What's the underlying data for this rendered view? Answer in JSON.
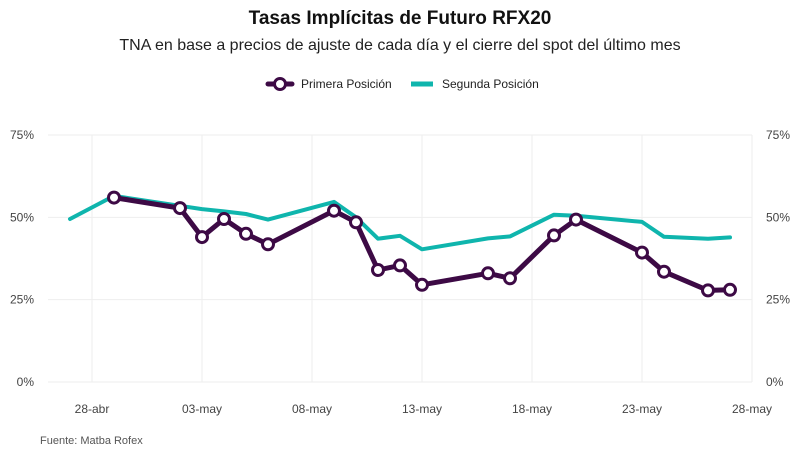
{
  "chart_data": {
    "type": "line",
    "title": "Tasas Implícitas de Futuro RFX20",
    "subtitle": "TNA en base a precios de ajuste de cada día y el cierre del spot del último mes",
    "caption": "Fuente: Matba Rofex",
    "ylim": [
      0,
      75
    ],
    "yticks": [
      0,
      25,
      50,
      75
    ],
    "ytick_labels": [
      "0%",
      "25%",
      "50%",
      "75%"
    ],
    "xlim": [
      "2021-04-26",
      "2021-05-28"
    ],
    "xticks": [
      "2021-04-28",
      "2021-05-03",
      "2021-05-08",
      "2021-05-13",
      "2021-05-18",
      "2021-05-23",
      "2021-05-28"
    ],
    "xtick_labels": [
      "28-abr",
      "03-may",
      "08-may",
      "13-may",
      "18-may",
      "23-may",
      "28-may"
    ],
    "grid": true,
    "legend_position": "top",
    "series": [
      {
        "name": "Primera Posición",
        "color": "#3d0a45",
        "marker": "circle",
        "points": [
          [
            "2021-04-29",
            56.0
          ],
          [
            "2021-05-02",
            52.8
          ],
          [
            "2021-05-03",
            44.0
          ],
          [
            "2021-05-04",
            49.5
          ],
          [
            "2021-05-05",
            45.0
          ],
          [
            "2021-05-06",
            41.8
          ],
          [
            "2021-05-09",
            52.0
          ],
          [
            "2021-05-10",
            48.5
          ],
          [
            "2021-05-11",
            34.0
          ],
          [
            "2021-05-12",
            35.4
          ],
          [
            "2021-05-13",
            29.5
          ],
          [
            "2021-05-16",
            33.0
          ],
          [
            "2021-05-17",
            31.5
          ],
          [
            "2021-05-19",
            44.5
          ],
          [
            "2021-05-20",
            49.3
          ],
          [
            "2021-05-23",
            39.3
          ],
          [
            "2021-05-24",
            33.5
          ],
          [
            "2021-05-26",
            27.8
          ],
          [
            "2021-05-27",
            28.0
          ]
        ]
      },
      {
        "name": "Segunda Posición",
        "color": "#0fb5ad",
        "marker": "none",
        "points": [
          [
            "2021-04-27",
            49.5
          ],
          [
            "2021-04-29",
            56.5
          ],
          [
            "2021-05-02",
            53.5
          ],
          [
            "2021-05-03",
            52.5
          ],
          [
            "2021-05-04",
            51.8
          ],
          [
            "2021-05-05",
            51.0
          ],
          [
            "2021-05-06",
            49.3
          ],
          [
            "2021-05-09",
            54.7
          ],
          [
            "2021-05-10",
            50.0
          ],
          [
            "2021-05-11",
            43.5
          ],
          [
            "2021-05-12",
            44.4
          ],
          [
            "2021-05-13",
            40.3
          ],
          [
            "2021-05-16",
            43.6
          ],
          [
            "2021-05-17",
            44.2
          ],
          [
            "2021-05-19",
            50.8
          ],
          [
            "2021-05-20",
            50.5
          ],
          [
            "2021-05-23",
            48.6
          ],
          [
            "2021-05-24",
            44.1
          ],
          [
            "2021-05-26",
            43.5
          ],
          [
            "2021-05-27",
            43.9
          ]
        ]
      }
    ]
  }
}
